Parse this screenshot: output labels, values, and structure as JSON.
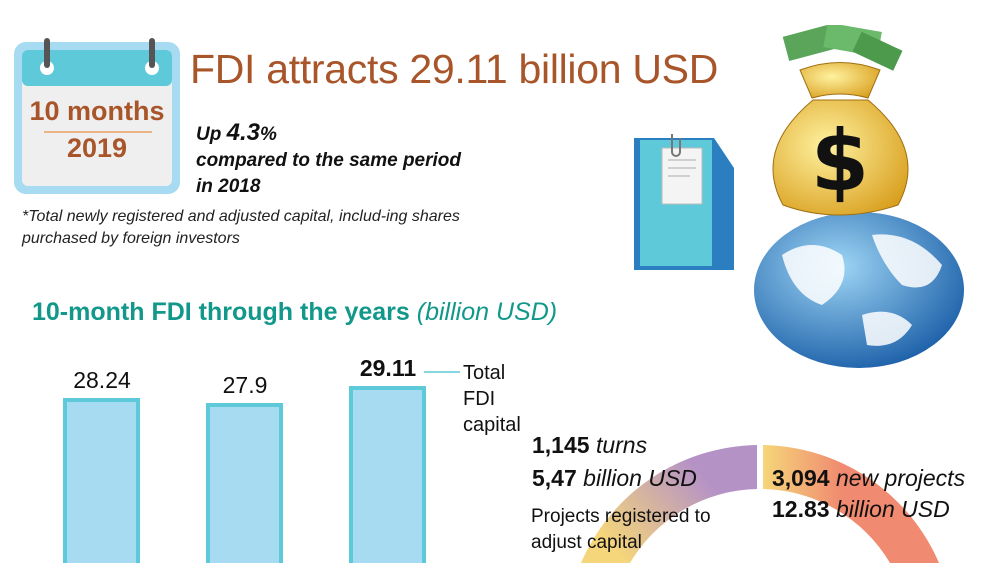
{
  "header": {
    "calendar_line1": "10 months",
    "calendar_line2": "2019",
    "title": "FDI attracts 29.11 billion USD",
    "up_prefix": "Up",
    "up_value": "4.3",
    "up_unit": "%",
    "up_line2": "compared to the same period",
    "up_line3": "in 2018",
    "note": "*Total newly registered and adjusted capital, includ-ing shares purchased by foreign investors"
  },
  "colors": {
    "title": "#a8552a",
    "chart_title": "#12988a",
    "bar_fill": "#a6dbf1",
    "bar_border": "#5ec9d9",
    "donut_adjust": "#b592c6",
    "donut_new": "#f08a70",
    "donut_yellow": "#f5d67a"
  },
  "icons": [
    "calendar-icon",
    "folder-icon",
    "money-bag-icon",
    "globe-icon"
  ],
  "chart_data": [
    {
      "type": "bar",
      "title": "10-month FDI through the years",
      "title_unit": "(billion USD)",
      "values": [
        28.24,
        27.9,
        29.11
      ],
      "labels": [
        "28.24",
        "27.9",
        "29.11"
      ],
      "legend": "Total FDI capital",
      "legend_lines": [
        "Total",
        "FDI",
        "capital"
      ]
    },
    {
      "type": "pie",
      "segments": [
        {
          "count": "1,145",
          "count_unit": "turns",
          "value": "5,47",
          "value_unit": "billion USD",
          "label_lines": [
            "Projects registered to",
            "adjust capital"
          ]
        },
        {
          "count": "3,094",
          "count_unit": "new projects",
          "value": "12.83",
          "value_unit": "billion USD"
        }
      ]
    }
  ]
}
